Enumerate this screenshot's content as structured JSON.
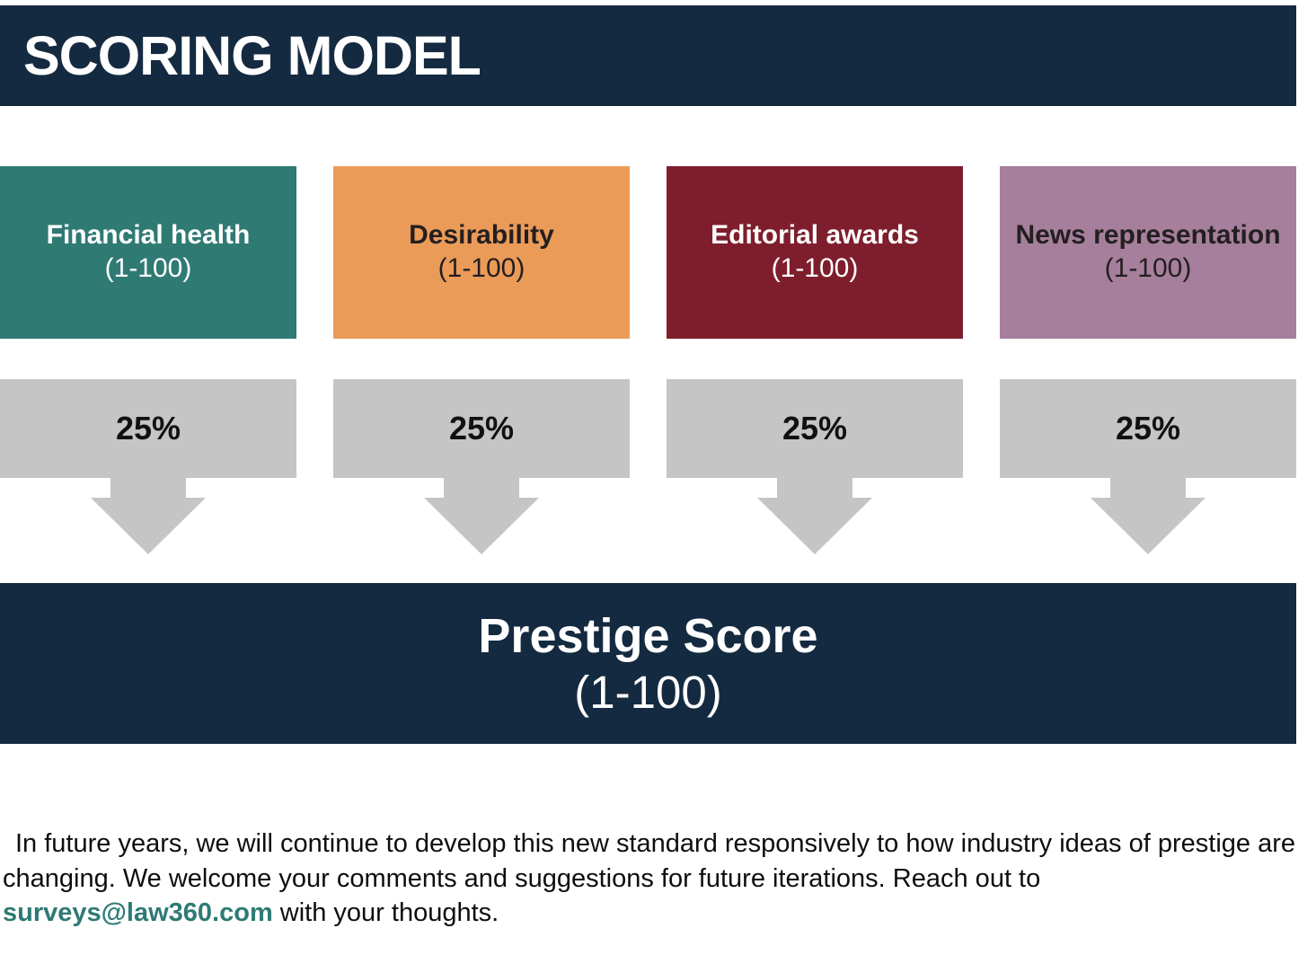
{
  "header": {
    "title": "SCORING MODEL"
  },
  "columns": [
    {
      "label": "Financial health",
      "range": "(1-100)",
      "weight": "25%",
      "color": "#2F7A73",
      "text_color": "#FFFFFF"
    },
    {
      "label": "Desirability",
      "range": "(1-100)",
      "weight": "25%",
      "color": "#EB9B58",
      "text_color": "#231F20"
    },
    {
      "label": "Editorial awards",
      "range": "(1-100)",
      "weight": "25%",
      "color": "#7E1E2C",
      "text_color": "#FFFFFF"
    },
    {
      "label": "News representation",
      "range": "(1-100)",
      "weight": "25%",
      "color": "#A67F9C",
      "text_color": "#231F20"
    }
  ],
  "result": {
    "title": "Prestige Score",
    "range": "(1-100)"
  },
  "paragraph": {
    "text_before_link": "In future years, we will continue to develop this new standard responsively to how industry ideas of prestige are changing. We welcome your comments and suggestions for future iterations. Reach out to ",
    "link": "surveys@law360.com",
    "text_after_link": " with your thoughts."
  },
  "colors": {
    "navy": "#142A40",
    "teal": "#2F7A73",
    "orange": "#EB9B58",
    "maroon": "#7E1E2C",
    "mauve": "#A67F9C",
    "arrow_gray": "#C5C5C5",
    "link_teal": "#2E7A75"
  }
}
